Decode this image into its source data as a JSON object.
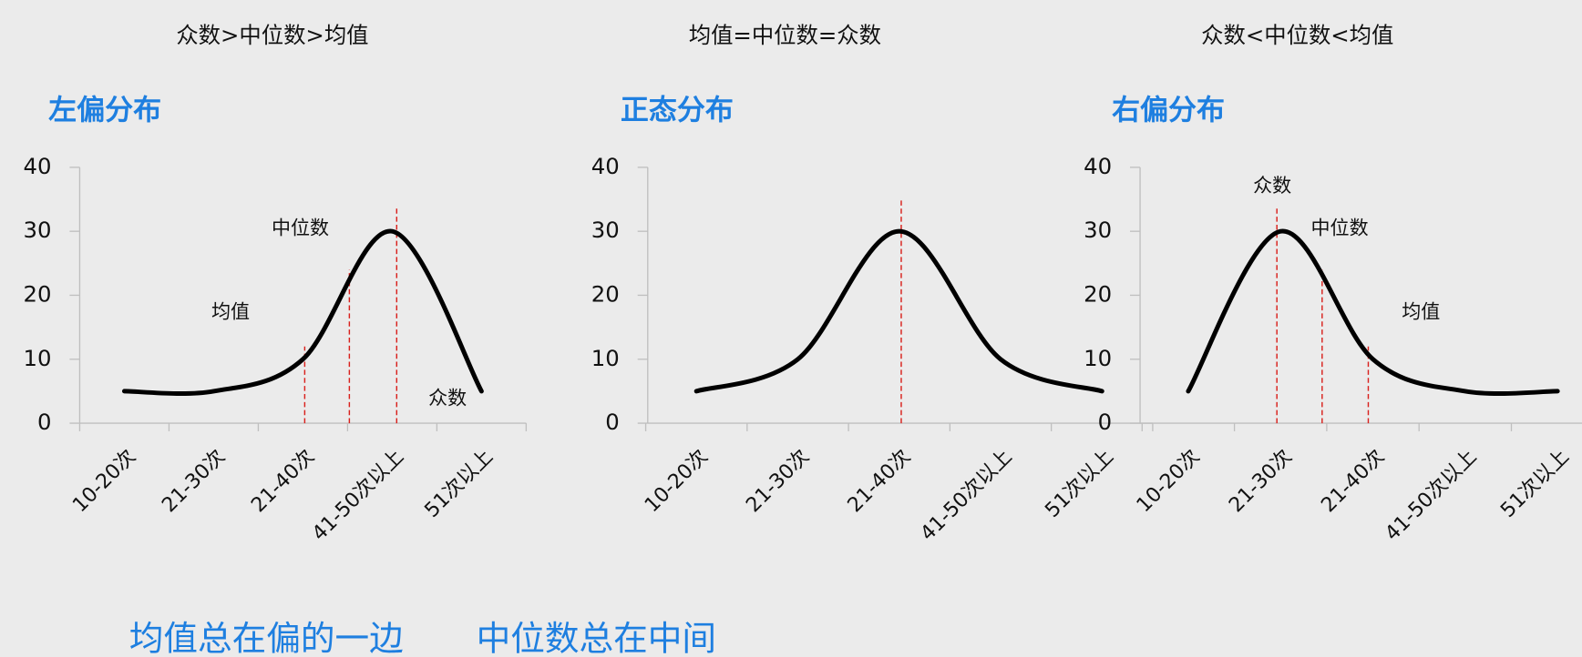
{
  "chart_data": [
    {
      "type": "line",
      "subtitle": "众数>中位数>均值",
      "title": "左偏分布",
      "categories": [
        "10-20次",
        "21-30次",
        "21-40次",
        "41-50次以上",
        "51次以上"
      ],
      "values": [
        5,
        5,
        10,
        30,
        5
      ],
      "color": "#000000",
      "ylim": [
        0,
        40
      ],
      "yticks": [
        0,
        10,
        20,
        30,
        40
      ],
      "reference_lines": [
        {
          "x": 2.02,
          "y": 12
        },
        {
          "x": 2.52,
          "y": 24
        },
        {
          "x": 3.05,
          "y": 34
        }
      ],
      "reference_color": "#d9201c",
      "annotations": [
        {
          "text": "中位数",
          "x": 1.97,
          "y": 30.4
        },
        {
          "text": "均值",
          "x": 1.19,
          "y": 17.3
        },
        {
          "text": "众数",
          "x": 3.62,
          "y": 3.8
        }
      ]
    },
    {
      "type": "line",
      "subtitle": "均值=中位数=众数",
      "title": "正态分布",
      "categories": [
        "10-20次",
        "21-30次",
        "21-40次",
        "41-50次以上",
        "51次以上"
      ],
      "values": [
        5,
        10,
        30,
        10,
        5
      ],
      "color": "#000000",
      "ylim": [
        0,
        40
      ],
      "yticks": [
        0,
        10,
        20,
        30,
        40
      ],
      "reference_lines": [
        {
          "x": 2.02,
          "y": 35
        }
      ],
      "reference_color": "#d9201c",
      "annotations": []
    },
    {
      "type": "line",
      "subtitle": "众数<中位数<均值",
      "title": "右偏分布",
      "categories": [
        "10-20次",
        "21-30次",
        "21-40次",
        "41-50次以上",
        "51次以上"
      ],
      "values": [
        5,
        30,
        10,
        5,
        5
      ],
      "color": "#000000",
      "ylim": [
        0,
        40
      ],
      "yticks": [
        0,
        10,
        20,
        30,
        40
      ],
      "reference_lines": [
        {
          "x": 0.96,
          "y": 34
        },
        {
          "x": 1.45,
          "y": 24
        },
        {
          "x": 1.95,
          "y": 12
        }
      ],
      "reference_color": "#d9201c",
      "annotations": [
        {
          "text": "众数",
          "x": 0.91,
          "y": 37
        },
        {
          "text": "中位数",
          "x": 1.64,
          "y": 30.4
        },
        {
          "text": "均值",
          "x": 2.52,
          "y": 17.3
        }
      ]
    }
  ],
  "footer": [
    "均值总在偏的一边",
    "中位数总在中间"
  ]
}
